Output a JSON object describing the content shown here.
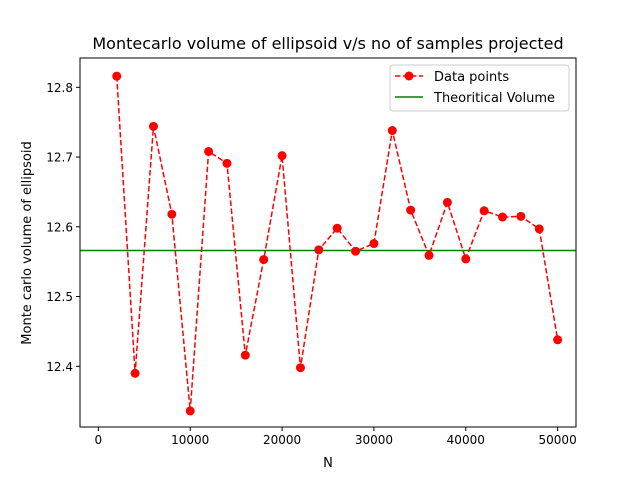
{
  "chart_data": {
    "type": "line",
    "title": "Montecarlo volume of ellipsoid v/s no of samples projected",
    "xlabel": "N",
    "ylabel": "Monte carlo volume of ellipsoid",
    "xlim": [
      -2000,
      52000
    ],
    "ylim": [
      12.313,
      12.842
    ],
    "x_ticks": [
      0,
      10000,
      20000,
      30000,
      40000,
      50000
    ],
    "y_ticks": [
      12.4,
      12.5,
      12.6,
      12.7,
      12.8
    ],
    "x_tick_labels": [
      "0",
      "10000",
      "20000",
      "30000",
      "40000",
      "50000"
    ],
    "y_tick_labels": [
      "12.4",
      "12.5",
      "12.6",
      "12.7",
      "12.8"
    ],
    "grid": false,
    "legend_position": "top-right",
    "series": [
      {
        "name": "Data points",
        "style": "dashed line with circle markers",
        "color": "#ff0000",
        "x": [
          2000,
          4000,
          6000,
          8000,
          10000,
          12000,
          14000,
          16000,
          18000,
          20000,
          22000,
          24000,
          26000,
          28000,
          30000,
          32000,
          34000,
          36000,
          38000,
          40000,
          42000,
          44000,
          46000,
          48000,
          50000
        ],
        "y": [
          12.816,
          12.39,
          12.744,
          12.618,
          12.336,
          12.708,
          12.691,
          12.416,
          12.553,
          12.702,
          12.398,
          12.567,
          12.598,
          12.565,
          12.576,
          12.738,
          12.624,
          12.559,
          12.635,
          12.554,
          12.623,
          12.614,
          12.615,
          12.597,
          12.438
        ]
      },
      {
        "name": "Theoritical Volume",
        "style": "solid horizontal line",
        "color": "#008000",
        "y": 12.566
      }
    ]
  }
}
